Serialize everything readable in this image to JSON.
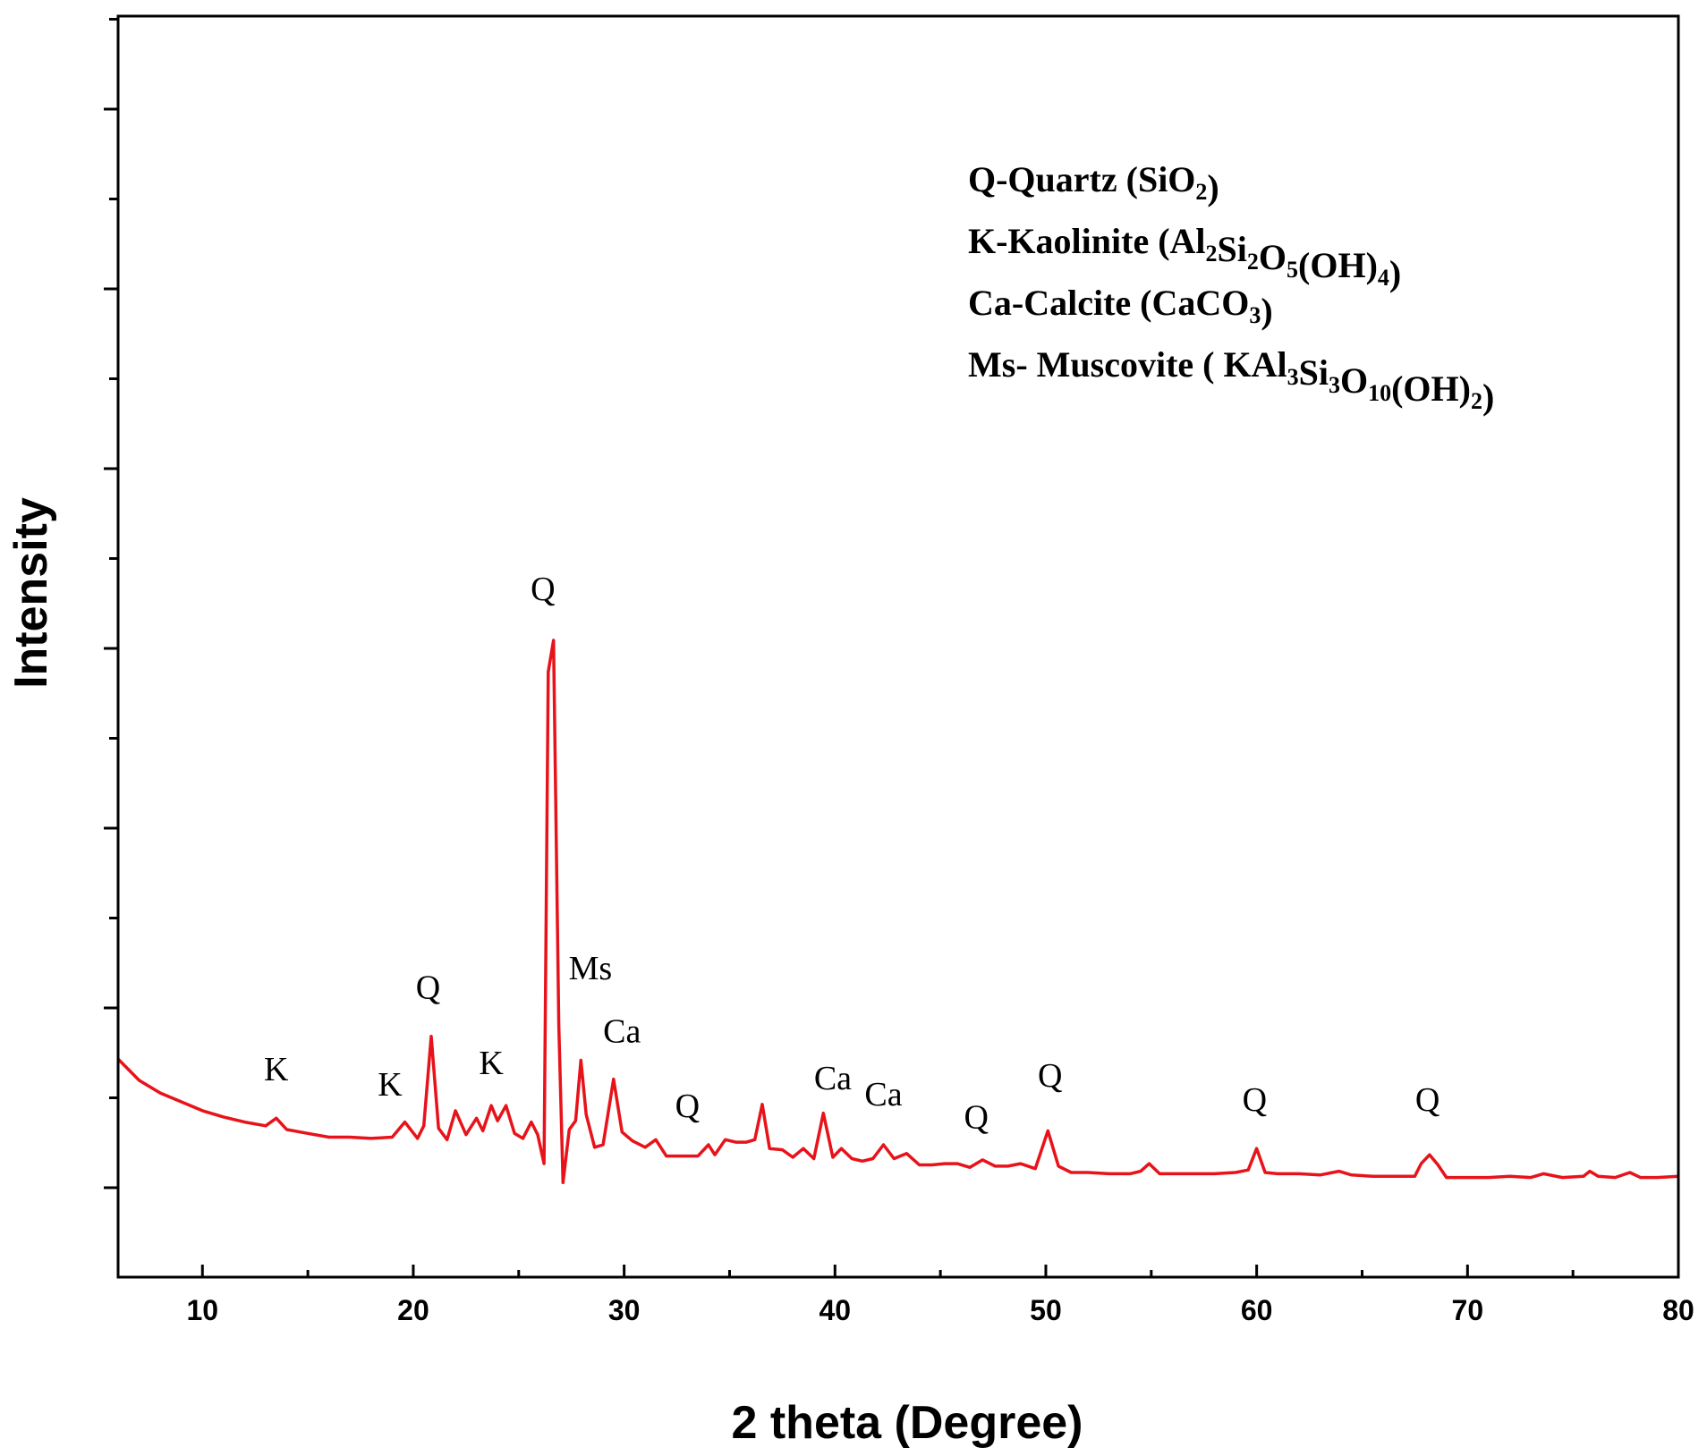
{
  "chart_data": {
    "type": "line",
    "xlabel": "2 theta (Degree)",
    "ylabel": "Intensity",
    "xlim": [
      6,
      80
    ],
    "ylim": [
      0,
      100
    ],
    "x_ticks": [
      10,
      20,
      30,
      40,
      50,
      60,
      70,
      80
    ],
    "y_tick_labels_shown": false,
    "line_color": "#e8131a",
    "legend": [
      {
        "prefix": "Q-Quartz (SiO",
        "parts": [
          [
            "SiO",
            ""
          ],
          [
            "2",
            "sub"
          ],
          [
            ")",
            ""
          ]
        ],
        "text": "Q-Quartz (SiO2)"
      },
      {
        "text": "K-Kaolinite (Al2Si2O5(OH)4)"
      },
      {
        "text": "Ca-Calcite (CaCO3)"
      },
      {
        "text": "Ms- Muscovite ( KAl3Si3O10(OH)2)"
      }
    ],
    "legend_rich": [
      [
        [
          "Q-Quartz (SiO",
          ""
        ],
        [
          "2",
          "sub"
        ],
        [
          ")",
          ""
        ]
      ],
      [
        [
          "K-Kaolinite (Al",
          ""
        ],
        [
          "2",
          "sub"
        ],
        [
          "Si",
          ""
        ],
        [
          "2",
          "sub"
        ],
        [
          "O",
          ""
        ],
        [
          "5",
          "sub"
        ],
        [
          "(OH)",
          ""
        ],
        [
          "4",
          "sub"
        ],
        [
          ")",
          ""
        ]
      ],
      [
        [
          "Ca-Calcite (CaCO",
          ""
        ],
        [
          "3",
          "sub"
        ],
        [
          ")",
          ""
        ]
      ],
      [
        [
          "Ms- Muscovite ( KAl",
          ""
        ],
        [
          "3",
          "sub"
        ],
        [
          "Si",
          ""
        ],
        [
          "3",
          "sub"
        ],
        [
          "O",
          ""
        ],
        [
          "10",
          "sub"
        ],
        [
          "(OH)",
          ""
        ],
        [
          "2",
          "sub"
        ],
        [
          ")",
          ""
        ]
      ]
    ],
    "legend_placement": "top-right",
    "series": [
      {
        "x": [
          6,
          7,
          8,
          9,
          10,
          11,
          12,
          13,
          13.5,
          14,
          15,
          16,
          17,
          18,
          19,
          19.6,
          20.2,
          20.5,
          20.85,
          21.2,
          21.6,
          22.0,
          22.5,
          23.0,
          23.3,
          23.7,
          24.0,
          24.4,
          24.8,
          25.2,
          25.6,
          25.9,
          26.2,
          26.4,
          26.65,
          26.9,
          27.1,
          27.4,
          27.7,
          27.95,
          28.2,
          28.6,
          29.0,
          29.5,
          29.9,
          30.4,
          31.0,
          31.5,
          32.0,
          32.5,
          33.0,
          33.5,
          34.0,
          34.3,
          34.8,
          35.3,
          35.8,
          36.2,
          36.55,
          36.9,
          37.5,
          38.0,
          38.5,
          39.0,
          39.45,
          39.9,
          40.3,
          40.8,
          41.3,
          41.8,
          42.3,
          42.8,
          43.4,
          44.0,
          44.6,
          45.2,
          45.8,
          46.4,
          47.0,
          47.6,
          48.2,
          48.8,
          49.5,
          50.1,
          50.6,
          51.2,
          52.0,
          53.0,
          54.0,
          54.5,
          54.9,
          55.4,
          56.0,
          57.0,
          58.0,
          59.0,
          59.6,
          60.0,
          60.4,
          61.0,
          62.0,
          63.0,
          63.9,
          64.5,
          65.5,
          66.5,
          67.5,
          67.8,
          68.2,
          68.6,
          69.0,
          70.0,
          71.0,
          72.0,
          73.0,
          73.6,
          74.5,
          75.5,
          75.8,
          76.2,
          77.0,
          77.7,
          78.2,
          79.0,
          80.0
        ],
        "y": [
          17.3,
          15.6,
          14.6,
          13.9,
          13.2,
          12.7,
          12.3,
          12.0,
          12.6,
          11.7,
          11.4,
          11.1,
          11.1,
          11.0,
          11.1,
          12.3,
          11.0,
          12.0,
          19.1,
          11.8,
          10.9,
          13.2,
          11.3,
          12.6,
          11.6,
          13.6,
          12.4,
          13.6,
          11.4,
          11.0,
          12.3,
          11.3,
          9.0,
          48.0,
          50.5,
          20.0,
          7.5,
          11.7,
          12.4,
          17.2,
          12.9,
          10.3,
          10.5,
          15.7,
          11.5,
          10.8,
          10.3,
          10.9,
          9.6,
          9.6,
          9.6,
          9.6,
          10.5,
          9.7,
          10.9,
          10.7,
          10.7,
          10.9,
          13.7,
          10.2,
          10.1,
          9.5,
          10.2,
          9.4,
          13.0,
          9.5,
          10.2,
          9.4,
          9.2,
          9.4,
          10.5,
          9.4,
          9.8,
          8.9,
          8.9,
          9.0,
          9.0,
          8.7,
          9.3,
          8.8,
          8.8,
          9.0,
          8.6,
          11.6,
          8.8,
          8.3,
          8.3,
          8.2,
          8.2,
          8.4,
          9.0,
          8.2,
          8.2,
          8.2,
          8.2,
          8.3,
          8.5,
          10.2,
          8.3,
          8.2,
          8.2,
          8.1,
          8.4,
          8.1,
          8.0,
          8.0,
          8.0,
          9.0,
          9.7,
          8.9,
          7.9,
          7.9,
          7.9,
          8.0,
          7.9,
          8.2,
          7.9,
          8.0,
          8.4,
          8.0,
          7.9,
          8.3,
          7.9,
          7.9,
          8.0
        ]
      }
    ],
    "annotations": [
      {
        "text": "K",
        "x": 13.5,
        "y": 15.6
      },
      {
        "text": "K",
        "x": 18.9,
        "y": 14.4
      },
      {
        "text": "Q",
        "x": 20.7,
        "y": 22.1
      },
      {
        "text": "K",
        "x": 23.7,
        "y": 16.1
      },
      {
        "text": "Q",
        "x": 26.15,
        "y": 53.7
      },
      {
        "text": "Ms",
        "x": 28.4,
        "y": 23.6
      },
      {
        "text": "Ca",
        "x": 29.9,
        "y": 18.6
      },
      {
        "text": "Q",
        "x": 33.0,
        "y": 12.7
      },
      {
        "text": "Ca",
        "x": 39.9,
        "y": 14.9
      },
      {
        "text": "Ca",
        "x": 42.3,
        "y": 13.6
      },
      {
        "text": "Q",
        "x": 46.7,
        "y": 11.8
      },
      {
        "text": "Q",
        "x": 50.2,
        "y": 15.1
      },
      {
        "text": "Q",
        "x": 59.9,
        "y": 13.2
      },
      {
        "text": "Q",
        "x": 68.1,
        "y": 13.2
      }
    ]
  }
}
